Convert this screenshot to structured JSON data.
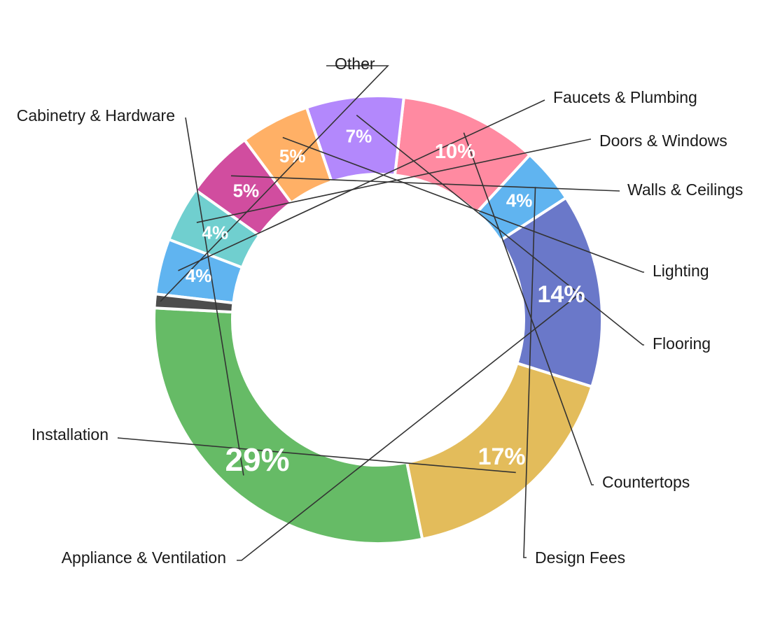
{
  "chart_data": {
    "type": "pie",
    "variant": "donut",
    "title": "",
    "label_suffix": "%",
    "slices": [
      {
        "label": "Cabinetry & Hardware",
        "value": 29,
        "color": "#66bb66"
      },
      {
        "label": "Installation",
        "value": 17,
        "color": "#e3bc5b"
      },
      {
        "label": "Appliance & Ventilation",
        "value": 14,
        "color": "#6a78c9"
      },
      {
        "label": "Design Fees",
        "value": 4,
        "color": "#60b4f0"
      },
      {
        "label": "Countertops",
        "value": 10,
        "color": "#ff8aa1"
      },
      {
        "label": "Flooring",
        "value": 7,
        "color": "#b388fc"
      },
      {
        "label": "Lighting",
        "value": 5,
        "color": "#ffb066"
      },
      {
        "label": "Walls & Ceilings",
        "value": 5,
        "color": "#d14d9f"
      },
      {
        "label": "Doors & Windows",
        "value": 4,
        "color": "#70cfcf"
      },
      {
        "label": "Faucets & Plumbing",
        "value": 4,
        "color": "#60b4f0"
      },
      {
        "label": "Other",
        "value": 1,
        "color": "#4d4d4d"
      }
    ]
  }
}
